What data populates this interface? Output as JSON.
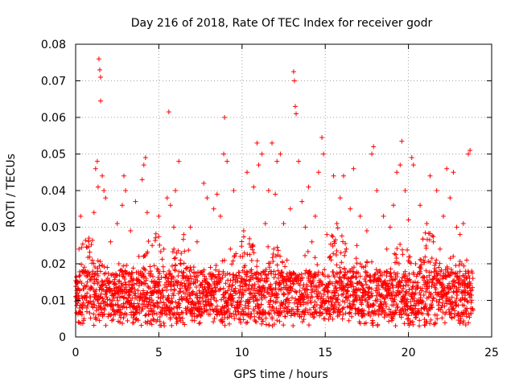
{
  "chart_data": {
    "type": "scatter",
    "title": "Day 216 of 2018, Rate Of TEC Index for receiver godr",
    "xlabel": "GPS time / hours",
    "ylabel": "ROTI / TECUs",
    "xlim": [
      0,
      25
    ],
    "ylim": [
      0,
      0.08
    ],
    "xticks": [
      0,
      5,
      10,
      15,
      20,
      25
    ],
    "xtick_labels": [
      "0",
      "5",
      "10",
      "15",
      "20",
      "25"
    ],
    "yticks": [
      0,
      0.01,
      0.02,
      0.03,
      0.04,
      0.05,
      0.06,
      0.07,
      0.08
    ],
    "ytick_labels": [
      "0",
      "0.01",
      "0.02",
      "0.03",
      "0.04",
      "0.05",
      "0.06",
      "0.07",
      "0.08"
    ],
    "grid": true,
    "marker": "+",
    "color": "#ff0000",
    "series": [
      {
        "name": "ROTI",
        "points": [
          [
            0.1,
            0.012
          ],
          [
            0.2,
            0.024
          ],
          [
            0.3,
            0.033
          ],
          [
            0.4,
            0.008
          ],
          [
            0.5,
            0.005
          ],
          [
            0.6,
            0.018
          ],
          [
            0.7,
            0.015
          ],
          [
            0.8,
            0.027
          ],
          [
            0.9,
            0.011
          ],
          [
            1.0,
            0.021
          ],
          [
            1.1,
            0.034
          ],
          [
            1.2,
            0.046
          ],
          [
            1.3,
            0.048
          ],
          [
            1.35,
            0.041
          ],
          [
            1.4,
            0.076
          ],
          [
            1.45,
            0.073
          ],
          [
            1.5,
            0.071
          ],
          [
            1.5,
            0.0645
          ],
          [
            1.6,
            0.044
          ],
          [
            1.7,
            0.04
          ],
          [
            1.8,
            0.038
          ],
          [
            1.9,
            0.019
          ],
          [
            2.0,
            0.013
          ],
          [
            2.1,
            0.026
          ],
          [
            2.3,
            0.017
          ],
          [
            2.5,
            0.031
          ],
          [
            2.6,
            0.02
          ],
          [
            2.8,
            0.036
          ],
          [
            2.9,
            0.044
          ],
          [
            3.0,
            0.04
          ],
          [
            3.2,
            0.015
          ],
          [
            3.3,
            0.029
          ],
          [
            3.5,
            0.012
          ],
          [
            3.6,
            0.037
          ],
          [
            3.8,
            0.022
          ],
          [
            4.0,
            0.043
          ],
          [
            4.1,
            0.047
          ],
          [
            4.2,
            0.049
          ],
          [
            4.3,
            0.034
          ],
          [
            4.5,
            0.018
          ],
          [
            4.6,
            0.025
          ],
          [
            4.8,
            0.014
          ],
          [
            5.0,
            0.033
          ],
          [
            5.1,
            0.012
          ],
          [
            5.3,
            0.024
          ],
          [
            5.5,
            0.038
          ],
          [
            5.6,
            0.0615
          ],
          [
            5.7,
            0.036
          ],
          [
            5.9,
            0.03
          ],
          [
            6.0,
            0.04
          ],
          [
            6.2,
            0.048
          ],
          [
            6.3,
            0.021
          ],
          [
            6.5,
            0.028
          ],
          [
            6.7,
            0.011
          ],
          [
            6.9,
            0.03
          ],
          [
            7.1,
            0.015
          ],
          [
            7.3,
            0.026
          ],
          [
            7.5,
            0.009
          ],
          [
            7.7,
            0.042
          ],
          [
            7.9,
            0.038
          ],
          [
            8.1,
            0.019
          ],
          [
            8.3,
            0.035
          ],
          [
            8.5,
            0.039
          ],
          [
            8.7,
            0.033
          ],
          [
            8.9,
            0.05
          ],
          [
            8.95,
            0.06
          ],
          [
            9.1,
            0.048
          ],
          [
            9.3,
            0.024
          ],
          [
            9.5,
            0.04
          ],
          [
            9.7,
            0.012
          ],
          [
            9.9,
            0.022
          ],
          [
            10.1,
            0.029
          ],
          [
            10.3,
            0.045
          ],
          [
            10.5,
            0.018
          ],
          [
            10.7,
            0.041
          ],
          [
            10.9,
            0.053
          ],
          [
            11.0,
            0.047
          ],
          [
            11.2,
            0.05
          ],
          [
            11.4,
            0.031
          ],
          [
            11.6,
            0.04
          ],
          [
            11.8,
            0.053
          ],
          [
            12.0,
            0.039
          ],
          [
            12.1,
            0.048
          ],
          [
            12.3,
            0.05
          ],
          [
            12.5,
            0.031
          ],
          [
            12.7,
            0.021
          ],
          [
            12.9,
            0.035
          ],
          [
            13.1,
            0.0725
          ],
          [
            13.15,
            0.07
          ],
          [
            13.2,
            0.063
          ],
          [
            13.25,
            0.061
          ],
          [
            13.4,
            0.048
          ],
          [
            13.6,
            0.037
          ],
          [
            13.8,
            0.03
          ],
          [
            14.0,
            0.041
          ],
          [
            14.2,
            0.026
          ],
          [
            14.4,
            0.033
          ],
          [
            14.6,
            0.045
          ],
          [
            14.8,
            0.0545
          ],
          [
            14.9,
            0.05
          ],
          [
            15.1,
            0.028
          ],
          [
            15.3,
            0.022
          ],
          [
            15.5,
            0.044
          ],
          [
            15.7,
            0.031
          ],
          [
            15.9,
            0.038
          ],
          [
            16.1,
            0.044
          ],
          [
            16.3,
            0.016
          ],
          [
            16.5,
            0.035
          ],
          [
            16.7,
            0.046
          ],
          [
            16.9,
            0.025
          ],
          [
            17.1,
            0.033
          ],
          [
            17.3,
            0.012
          ],
          [
            17.5,
            0.029
          ],
          [
            17.8,
            0.05
          ],
          [
            17.9,
            0.052
          ],
          [
            18.1,
            0.04
          ],
          [
            18.3,
            0.018
          ],
          [
            18.5,
            0.033
          ],
          [
            18.7,
            0.024
          ],
          [
            18.9,
            0.03
          ],
          [
            19.1,
            0.036
          ],
          [
            19.3,
            0.045
          ],
          [
            19.5,
            0.047
          ],
          [
            19.6,
            0.0535
          ],
          [
            19.8,
            0.04
          ],
          [
            20.0,
            0.032
          ],
          [
            20.2,
            0.049
          ],
          [
            20.3,
            0.047
          ],
          [
            20.5,
            0.014
          ],
          [
            20.7,
            0.036
          ],
          [
            20.9,
            0.021
          ],
          [
            21.1,
            0.031
          ],
          [
            21.3,
            0.044
          ],
          [
            21.5,
            0.016
          ],
          [
            21.7,
            0.04
          ],
          [
            21.9,
            0.024
          ],
          [
            22.1,
            0.033
          ],
          [
            22.3,
            0.046
          ],
          [
            22.5,
            0.038
          ],
          [
            22.7,
            0.045
          ],
          [
            22.9,
            0.03
          ],
          [
            23.1,
            0.028
          ],
          [
            23.3,
            0.031
          ],
          [
            23.5,
            0.021
          ],
          [
            23.6,
            0.05
          ],
          [
            23.7,
            0.051
          ],
          [
            23.8,
            0.018
          ]
        ]
      }
    ],
    "dense_band": {
      "description_values": "bulk of samples between 0.004 and 0.03 TECU across 0-24 h",
      "x_start": 0.0,
      "x_end": 23.9,
      "y_floor": 0.003,
      "y_typical_low": 0.006,
      "y_typical_high": 0.03
    }
  }
}
